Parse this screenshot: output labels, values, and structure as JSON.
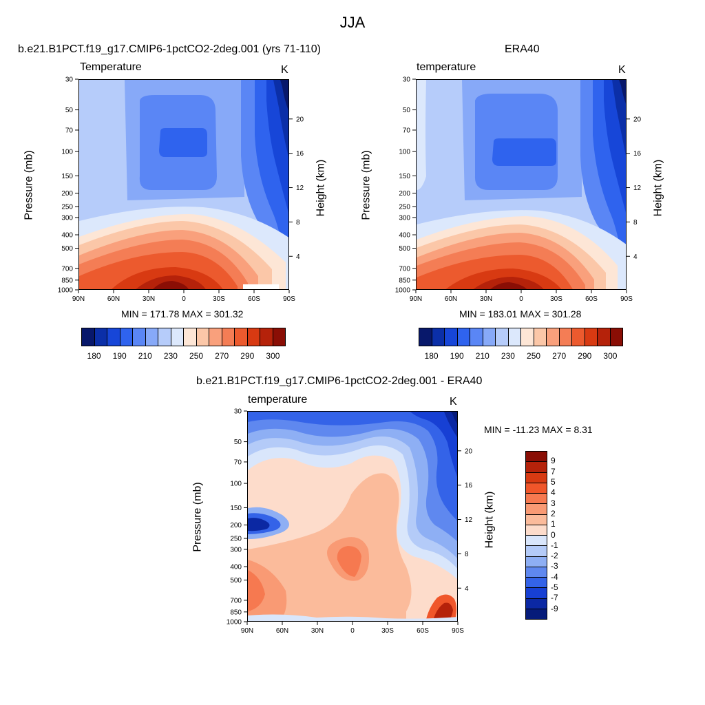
{
  "title": "JJA",
  "chart_data": [
    {
      "type": "heatmap",
      "title": "b.e21.B1PCT.f19_g17.CMIP6-1pctCO2-2deg.001 (yrs 71-110)",
      "field_label": "Temperature",
      "units": "K",
      "ylabel": "Pressure (mb)",
      "y2label": "Height (km)",
      "xlabel": "",
      "x_ticks": [
        "90N",
        "60N",
        "30N",
        "0",
        "30S",
        "60S",
        "90S"
      ],
      "y_ticks": [
        "30",
        "50",
        "70",
        "100",
        "150",
        "200",
        "250",
        "300",
        "400",
        "500",
        "700",
        "850",
        "1000"
      ],
      "y2_ticks": [
        "20",
        "16",
        "12",
        "8",
        "4"
      ],
      "stats": "MIN = 171.78  MAX = 301.32",
      "min": 171.78,
      "max": 301.32,
      "colorbar_labels": [
        "180",
        "190",
        "210",
        "230",
        "250",
        "270",
        "290",
        "300"
      ]
    },
    {
      "type": "heatmap",
      "title": "ERA40",
      "field_label": "temperature",
      "units": "K",
      "ylabel": "Pressure (mb)",
      "y2label": "Height (km)",
      "xlabel": "",
      "x_ticks": [
        "90N",
        "60N",
        "30N",
        "0",
        "30S",
        "60S",
        "90S"
      ],
      "y_ticks": [
        "30",
        "50",
        "70",
        "100",
        "150",
        "200",
        "250",
        "300",
        "400",
        "500",
        "700",
        "850",
        "1000"
      ],
      "y2_ticks": [
        "20",
        "16",
        "12",
        "8",
        "4"
      ],
      "stats": "MIN = 183.01  MAX = 301.28",
      "min": 183.01,
      "max": 301.28,
      "colorbar_labels": [
        "180",
        "190",
        "210",
        "230",
        "250",
        "270",
        "290",
        "300"
      ]
    },
    {
      "type": "heatmap",
      "title": "b.e21.B1PCT.f19_g17.CMIP6-1pctCO2-2deg.001 - ERA40",
      "field_label": "temperature",
      "units": "K",
      "ylabel": "Pressure (mb)",
      "y2label": "Height (km)",
      "xlabel": "",
      "x_ticks": [
        "90N",
        "60N",
        "30N",
        "0",
        "30S",
        "60S",
        "90S"
      ],
      "y_ticks": [
        "30",
        "50",
        "70",
        "100",
        "150",
        "200",
        "250",
        "300",
        "400",
        "500",
        "700",
        "850",
        "1000"
      ],
      "y2_ticks": [
        "20",
        "16",
        "12",
        "8",
        "4"
      ],
      "stats": "MIN = -11.23  MAX =   8.31",
      "min": -11.23,
      "max": 8.31,
      "colorbar_labels": [
        "9",
        "7",
        "5",
        "4",
        "3",
        "2",
        "1",
        "0",
        "-1",
        "-2",
        "-3",
        "-4",
        "-5",
        "-7",
        "-9"
      ]
    }
  ],
  "colors": {
    "temp_scale": [
      "#08186b",
      "#0b2fa8",
      "#1746d8",
      "#2f63ee",
      "#5a86f5",
      "#87a9f8",
      "#b6ccfa",
      "#dce8fc",
      "#fde6d6",
      "#fbc7a8",
      "#f9a07c",
      "#f47d55",
      "#ec5a2e",
      "#d83a12",
      "#b5220a",
      "#8a0e05"
    ],
    "diff_scale": [
      "#8a0e05",
      "#b5220a",
      "#d83a12",
      "#f0562a",
      "#f67950",
      "#f99a74",
      "#fbbb9b",
      "#fddccb",
      "#d9e6fb",
      "#b4cbf8",
      "#8eaff4",
      "#5f88ef",
      "#3463e8",
      "#1740d4",
      "#0b28a3",
      "#061b7a"
    ]
  }
}
